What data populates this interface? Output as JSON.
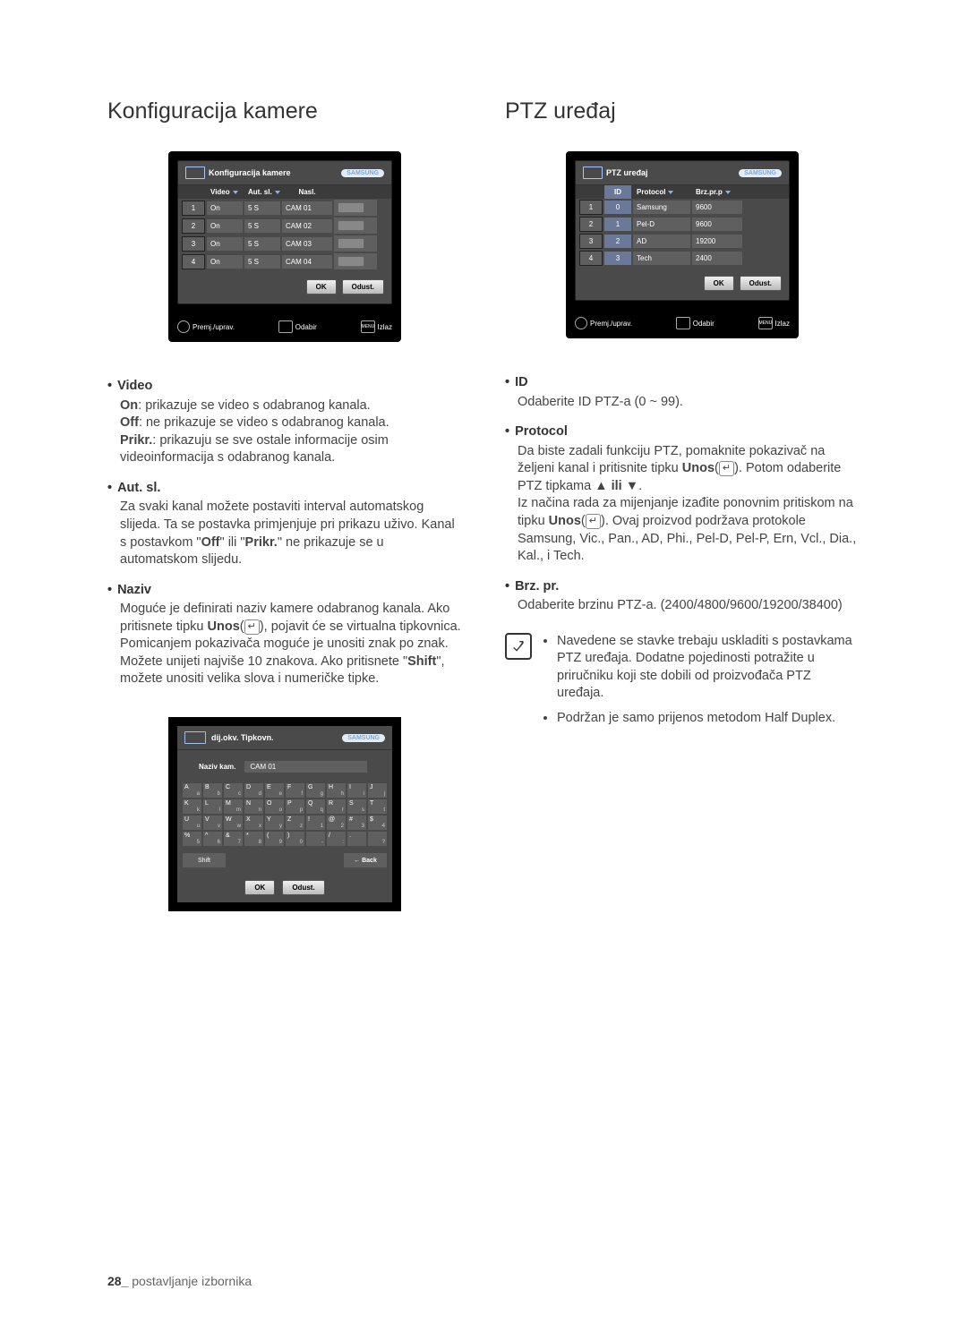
{
  "footer": {
    "page": "28_",
    "section": "postavljanje izbornika"
  },
  "left": {
    "heading": "Konfiguracija kamere",
    "osd": {
      "title": "Konfiguracija kamere",
      "logo": "SAMSUNG",
      "headers": {
        "video": "Video",
        "autosl": "Aut. sl.",
        "nasl": "Nasl."
      },
      "rows": [
        {
          "ch": "1",
          "video": "On",
          "autosl": "5 S",
          "nasl": "CAM 01"
        },
        {
          "ch": "2",
          "video": "On",
          "autosl": "5 S",
          "nasl": "CAM 02"
        },
        {
          "ch": "3",
          "video": "On",
          "autosl": "5 S",
          "nasl": "CAM 03"
        },
        {
          "ch": "4",
          "video": "On",
          "autosl": "5 S",
          "nasl": "CAM 04"
        }
      ],
      "ok": "OK",
      "cancel": "Odust.",
      "foot1": "Premj./uprav.",
      "foot2": "Odabir",
      "foot3": "Izlaz",
      "foot3_pre": "MENU"
    },
    "video_title": "Video",
    "video_on_label": "On",
    "video_on_text": ": prikazuje se video s odabranog kanala.",
    "video_off_label": "Off",
    "video_off_text": ": ne prikazuje se video s odabranog kanala.",
    "video_prikr_label": "Prikr.",
    "video_prikr_text": ": prikazuju se sve ostale informacije osim videoinformacija s odabranog kanala.",
    "autsl_title": "Aut. sl.",
    "autsl_body_a": "Za svaki kanal možete postaviti interval automatskog slijeda. Ta se postavka primjenjuje pri prikazu uživo. Kanal s postavkom \"",
    "autsl_off": "Off",
    "autsl_body_b": "\" ili \"",
    "autsl_prikr": "Prikr.",
    "autsl_body_c": "\" ne prikazuje se u automatskom slijedu.",
    "naziv_title": "Naziv",
    "naziv_a": "Moguće je definirati naziv kamere odabranog kanala. Ako pritisnete tipku ",
    "naziv_unos": "Unos",
    "naziv_b": "(",
    "naziv_c": "), pojavit će se virtualna tipkovnica. Pomicanjem pokazivača moguće je unositi znak po znak. Možete unijeti najviše 10 znakova. Ako pritisnete \"",
    "naziv_shift": "Shift",
    "naziv_d": "\", možete unositi velika slova i numeričke tipke.",
    "kb": {
      "title": "dij.okv. Tipkovn.",
      "label": "Naziv kam.",
      "value": "CAM 01",
      "rows": [
        [
          [
            "A",
            "a"
          ],
          [
            "B",
            "b"
          ],
          [
            "C",
            "c"
          ],
          [
            "D",
            "d"
          ],
          [
            "E",
            "e"
          ],
          [
            "F",
            "f"
          ],
          [
            "G",
            "g"
          ],
          [
            "H",
            "h"
          ],
          [
            "I",
            "i"
          ],
          [
            "J",
            "j"
          ]
        ],
        [
          [
            "K",
            "k"
          ],
          [
            "L",
            "l"
          ],
          [
            "M",
            "m"
          ],
          [
            "N",
            "n"
          ],
          [
            "O",
            "o"
          ],
          [
            "P",
            "p"
          ],
          [
            "Q",
            "q"
          ],
          [
            "R",
            "r"
          ],
          [
            "S",
            "s"
          ],
          [
            "T",
            "t"
          ]
        ],
        [
          [
            "U",
            "u"
          ],
          [
            "V",
            "v"
          ],
          [
            "W",
            "w"
          ],
          [
            "X",
            "x"
          ],
          [
            "Y",
            "y"
          ],
          [
            "Z",
            "z"
          ],
          [
            "!",
            "1"
          ],
          [
            "@",
            "2"
          ],
          [
            "#",
            "3"
          ],
          [
            "$",
            "4"
          ]
        ],
        [
          [
            "%",
            "5"
          ],
          [
            "^",
            "6"
          ],
          [
            "&",
            "7"
          ],
          [
            "*",
            "8"
          ],
          [
            "(",
            "9"
          ],
          [
            ")",
            "0"
          ],
          [
            "",
            "-"
          ],
          [
            "/",
            ":"
          ],
          [
            ".",
            ""
          ],
          [
            "",
            "?"
          ]
        ]
      ],
      "shift": "Shift",
      "back": "← Back",
      "ok": "OK",
      "cancel": "Odust."
    }
  },
  "right": {
    "heading": "PTZ uređaj",
    "osd": {
      "title": "PTZ uređaj",
      "logo": "SAMSUNG",
      "headers": {
        "id": "ID",
        "protocol": "Protocol",
        "baud": "Brz.pr.p"
      },
      "rows": [
        {
          "ch": "1",
          "id": "0",
          "protocol": "Samsung",
          "baud": "9600"
        },
        {
          "ch": "2",
          "id": "1",
          "protocol": "Pel-D",
          "baud": "9600"
        },
        {
          "ch": "3",
          "id": "2",
          "protocol": "AD",
          "baud": "19200"
        },
        {
          "ch": "4",
          "id": "3",
          "protocol": "Tech",
          "baud": "2400"
        }
      ],
      "ok": "OK",
      "cancel": "Odust.",
      "foot1": "Premj./uprav.",
      "foot2": "Odabir",
      "foot3": "Izlaz",
      "foot3_pre": "MENU"
    },
    "id_title": "ID",
    "id_body": "Odaberite ID PTZ-a (0 ~ 99).",
    "proto_title": "Protocol",
    "proto_a": "Da biste zadali funkciju PTZ, pomaknite pokazivač na željeni kanal i pritisnite tipku ",
    "proto_unos": "Unos",
    "proto_b": "(",
    "proto_c": "). Potom odaberite PTZ tipkama ",
    "proto_ili": " ili ",
    "proto_d": ".",
    "proto_e": "Iz načina rada za mijenjanje izađite ponovnim pritiskom na tipku ",
    "proto_f": "). Ovaj proizvod podržava protokole Samsung, Vic., Pan., AD, Phi., Pel-D, Pel-P, Ern, Vcl., Dia., Kal., i Tech.",
    "brz_title": "Brz. pr.",
    "brz_body": "Odaberite brzinu PTZ-a. (2400/4800/9600/19200/38400)",
    "note1": "Navedene se stavke trebaju uskladiti s postavkama PTZ uređaja. Dodatne pojedinosti potražite u priručniku koji ste dobili od proizvođača PTZ uređaja.",
    "note2": "Podržan je samo prijenos metodom Half Duplex."
  }
}
